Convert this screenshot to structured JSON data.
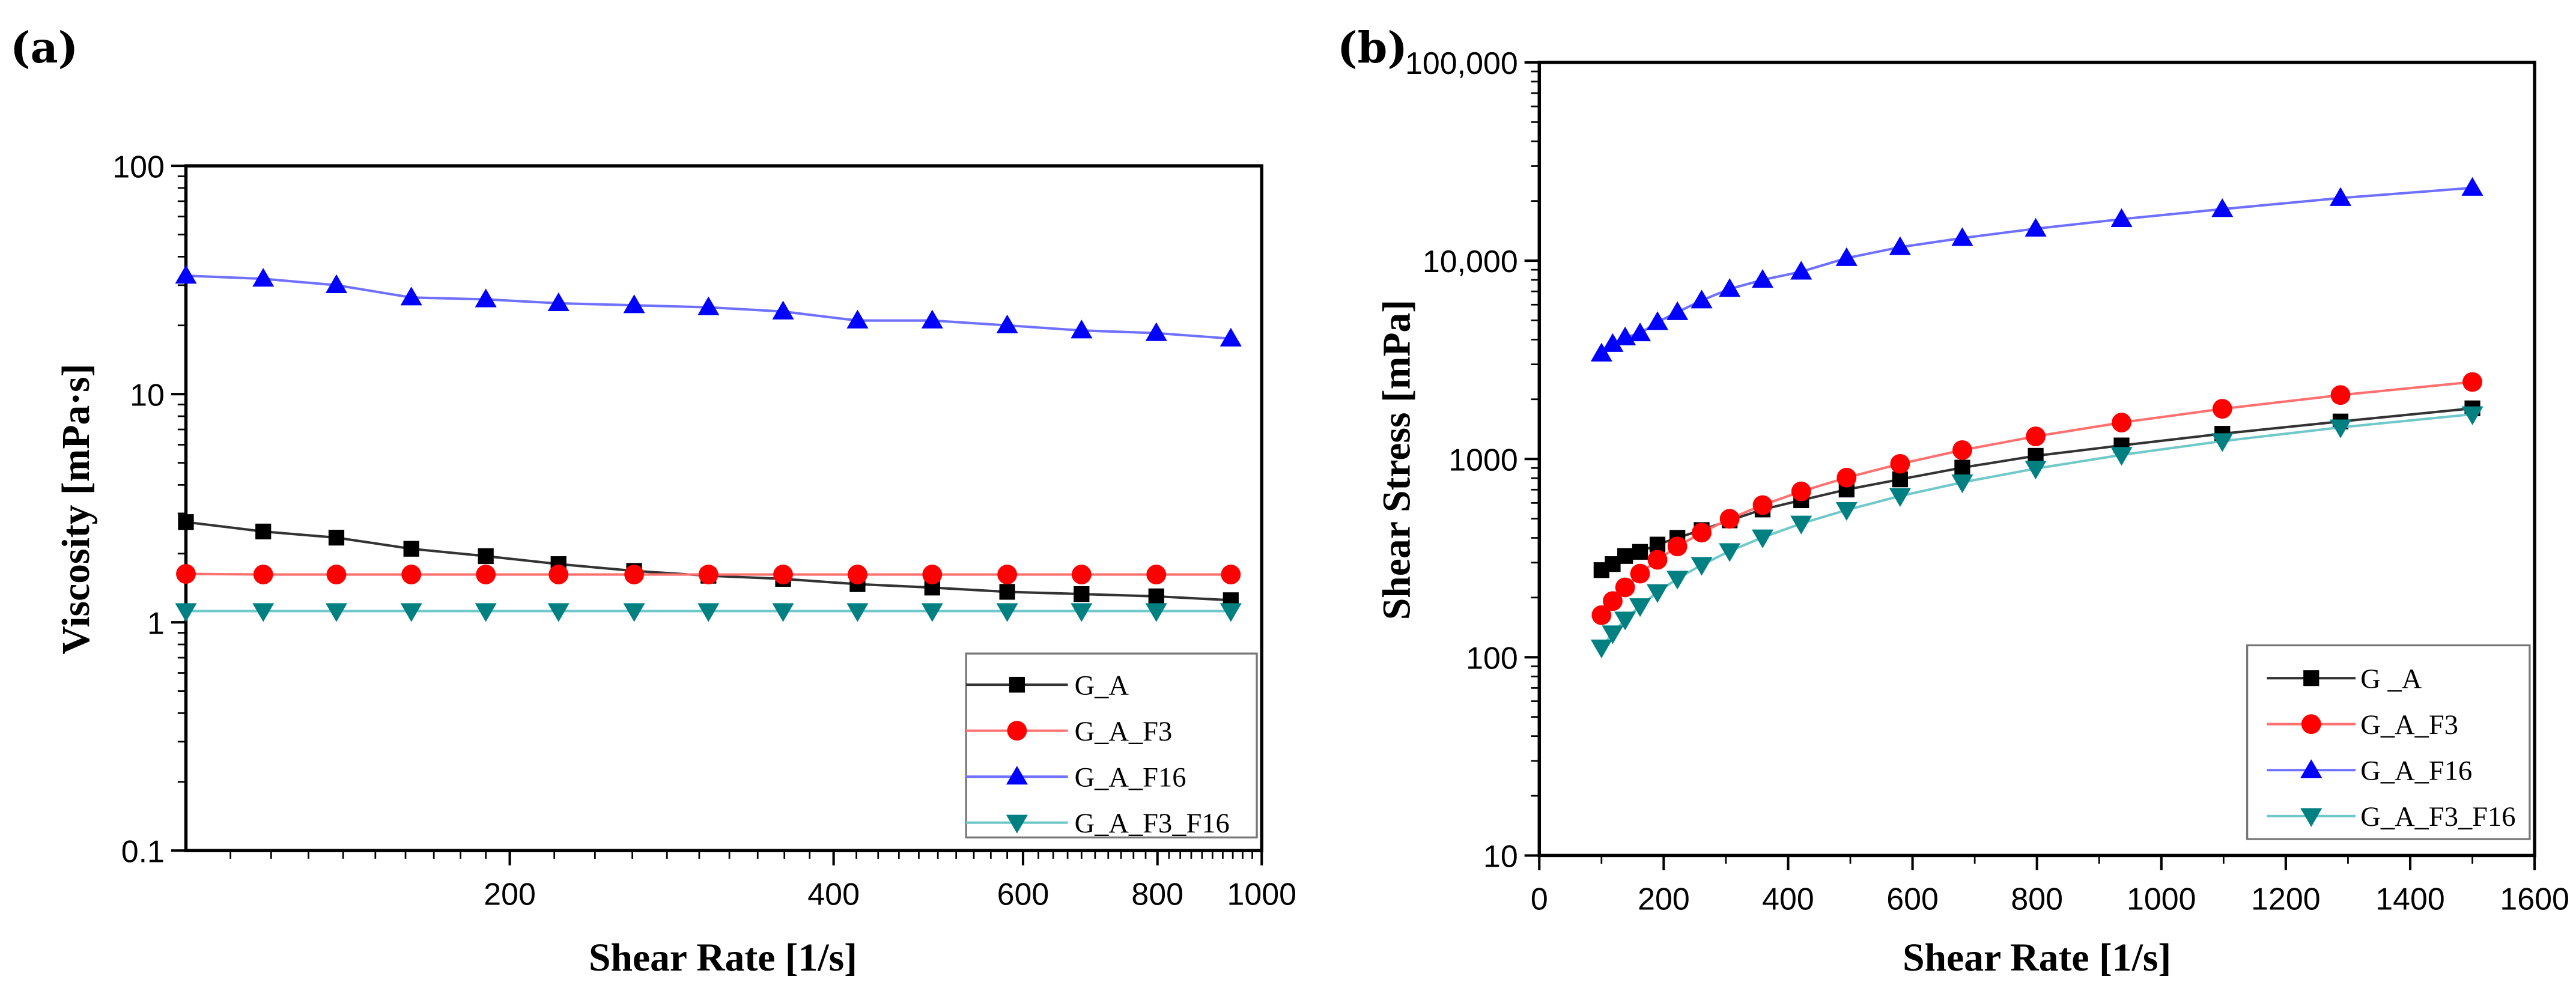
{
  "chart_data": [
    {
      "panel": "(a)",
      "type": "line",
      "title": "",
      "xlabel": "Shear Rate [1/s]",
      "ylabel": "Viscosity [mPa·s]",
      "xscale": "log",
      "yscale": "log",
      "xlim": [
        100,
        1000
      ],
      "ylim": [
        0.1,
        100
      ],
      "xticks": [
        200,
        400,
        600,
        800,
        1000
      ],
      "xtick_labels": [
        "200",
        "400",
        "600",
        "800",
        "1000"
      ],
      "yticks": [
        0.1,
        1,
        10,
        100
      ],
      "ytick_labels": [
        "0.1",
        "1",
        "10",
        "100"
      ],
      "grid": false,
      "legend_position": "bottom-right",
      "x": [
        100,
        118,
        138,
        162,
        190,
        222,
        261,
        306,
        359,
        421,
        494,
        580,
        680,
        798,
        936
      ],
      "series": [
        {
          "name": "G_A",
          "color": "#000000",
          "line_color": "#333333",
          "marker": "square",
          "values": [
            2.75,
            2.5,
            2.35,
            2.1,
            1.95,
            1.8,
            1.68,
            1.6,
            1.55,
            1.47,
            1.42,
            1.36,
            1.33,
            1.3,
            1.25
          ]
        },
        {
          "name": "G_A_F3",
          "color": "#ff0000",
          "line_color": "#ff7070",
          "marker": "circle",
          "values": [
            1.63,
            1.62,
            1.62,
            1.62,
            1.62,
            1.62,
            1.62,
            1.62,
            1.62,
            1.62,
            1.62,
            1.62,
            1.62,
            1.62,
            1.62
          ]
        },
        {
          "name": "G_A_F16",
          "color": "#0000ff",
          "line_color": "#7070ff",
          "marker": "triangle-up",
          "values": [
            33,
            32,
            30,
            26.5,
            26,
            25,
            24.5,
            24,
            23,
            21,
            21,
            20,
            19,
            18.5,
            17.5
          ]
        },
        {
          "name": "G_A_F3_F16",
          "color": "#008080",
          "line_color": "#70c8c8",
          "marker": "triangle-down",
          "values": [
            1.12,
            1.12,
            1.12,
            1.12,
            1.12,
            1.12,
            1.12,
            1.12,
            1.12,
            1.12,
            1.12,
            1.12,
            1.12,
            1.12,
            1.12
          ]
        }
      ]
    },
    {
      "panel": "(b)",
      "type": "line",
      "title": "",
      "xlabel": "Shear Rate [1/s]",
      "ylabel": "Shear Stress [mPa]",
      "xscale": "linear",
      "yscale": "log",
      "xlim": [
        0,
        1600
      ],
      "ylim": [
        10,
        100000
      ],
      "xticks": [
        0,
        200,
        400,
        600,
        800,
        1000,
        1200,
        1400,
        1600
      ],
      "xtick_labels": [
        "0",
        "200",
        "400",
        "600",
        "800",
        "1000",
        "1200",
        "1400",
        "1600"
      ],
      "yticks": [
        10,
        100,
        1000,
        10000,
        100000
      ],
      "ytick_labels": [
        "10",
        "100",
        "1000",
        "10,000",
        "100,000"
      ],
      "grid": false,
      "legend_position": "bottom-right",
      "x": [
        100,
        118,
        138,
        162,
        190,
        222,
        261,
        306,
        359,
        421,
        494,
        580,
        680,
        798,
        936,
        1098,
        1288,
        1500
      ],
      "series": [
        {
          "name": "G _A",
          "color": "#000000",
          "line_color": "#333333",
          "marker": "square",
          "values": [
            275,
            295,
            324,
            340,
            370,
            400,
            438,
            490,
            556,
            619,
            701,
            789,
            904,
            1037,
            1170,
            1340,
            1545,
            1800
          ]
        },
        {
          "name": "G_A_F3",
          "color": "#ff0000",
          "line_color": "#ff7070",
          "marker": "circle",
          "values": [
            163,
            192,
            225,
            264,
            310,
            362,
            425,
            499,
            585,
            686,
            805,
            945,
            1108,
            1300,
            1526,
            1790,
            2100,
            2445
          ]
        },
        {
          "name": "G_A_F16",
          "color": "#0000ff",
          "line_color": "#7070ff",
          "marker": "triangle-up",
          "values": [
            3400,
            3800,
            4100,
            4300,
            4900,
            5500,
            6300,
            7200,
            8000,
            8800,
            10300,
            11700,
            13000,
            14500,
            16200,
            18200,
            20700,
            23300
          ]
        },
        {
          "name": "G_A_F3_F16",
          "color": "#008080",
          "line_color": "#70c8c8",
          "marker": "triangle-down",
          "values": [
            112,
            132,
            155,
            181,
            213,
            249,
            292,
            343,
            402,
            472,
            553,
            650,
            762,
            894,
            1048,
            1230,
            1443,
            1680
          ]
        }
      ]
    }
  ]
}
